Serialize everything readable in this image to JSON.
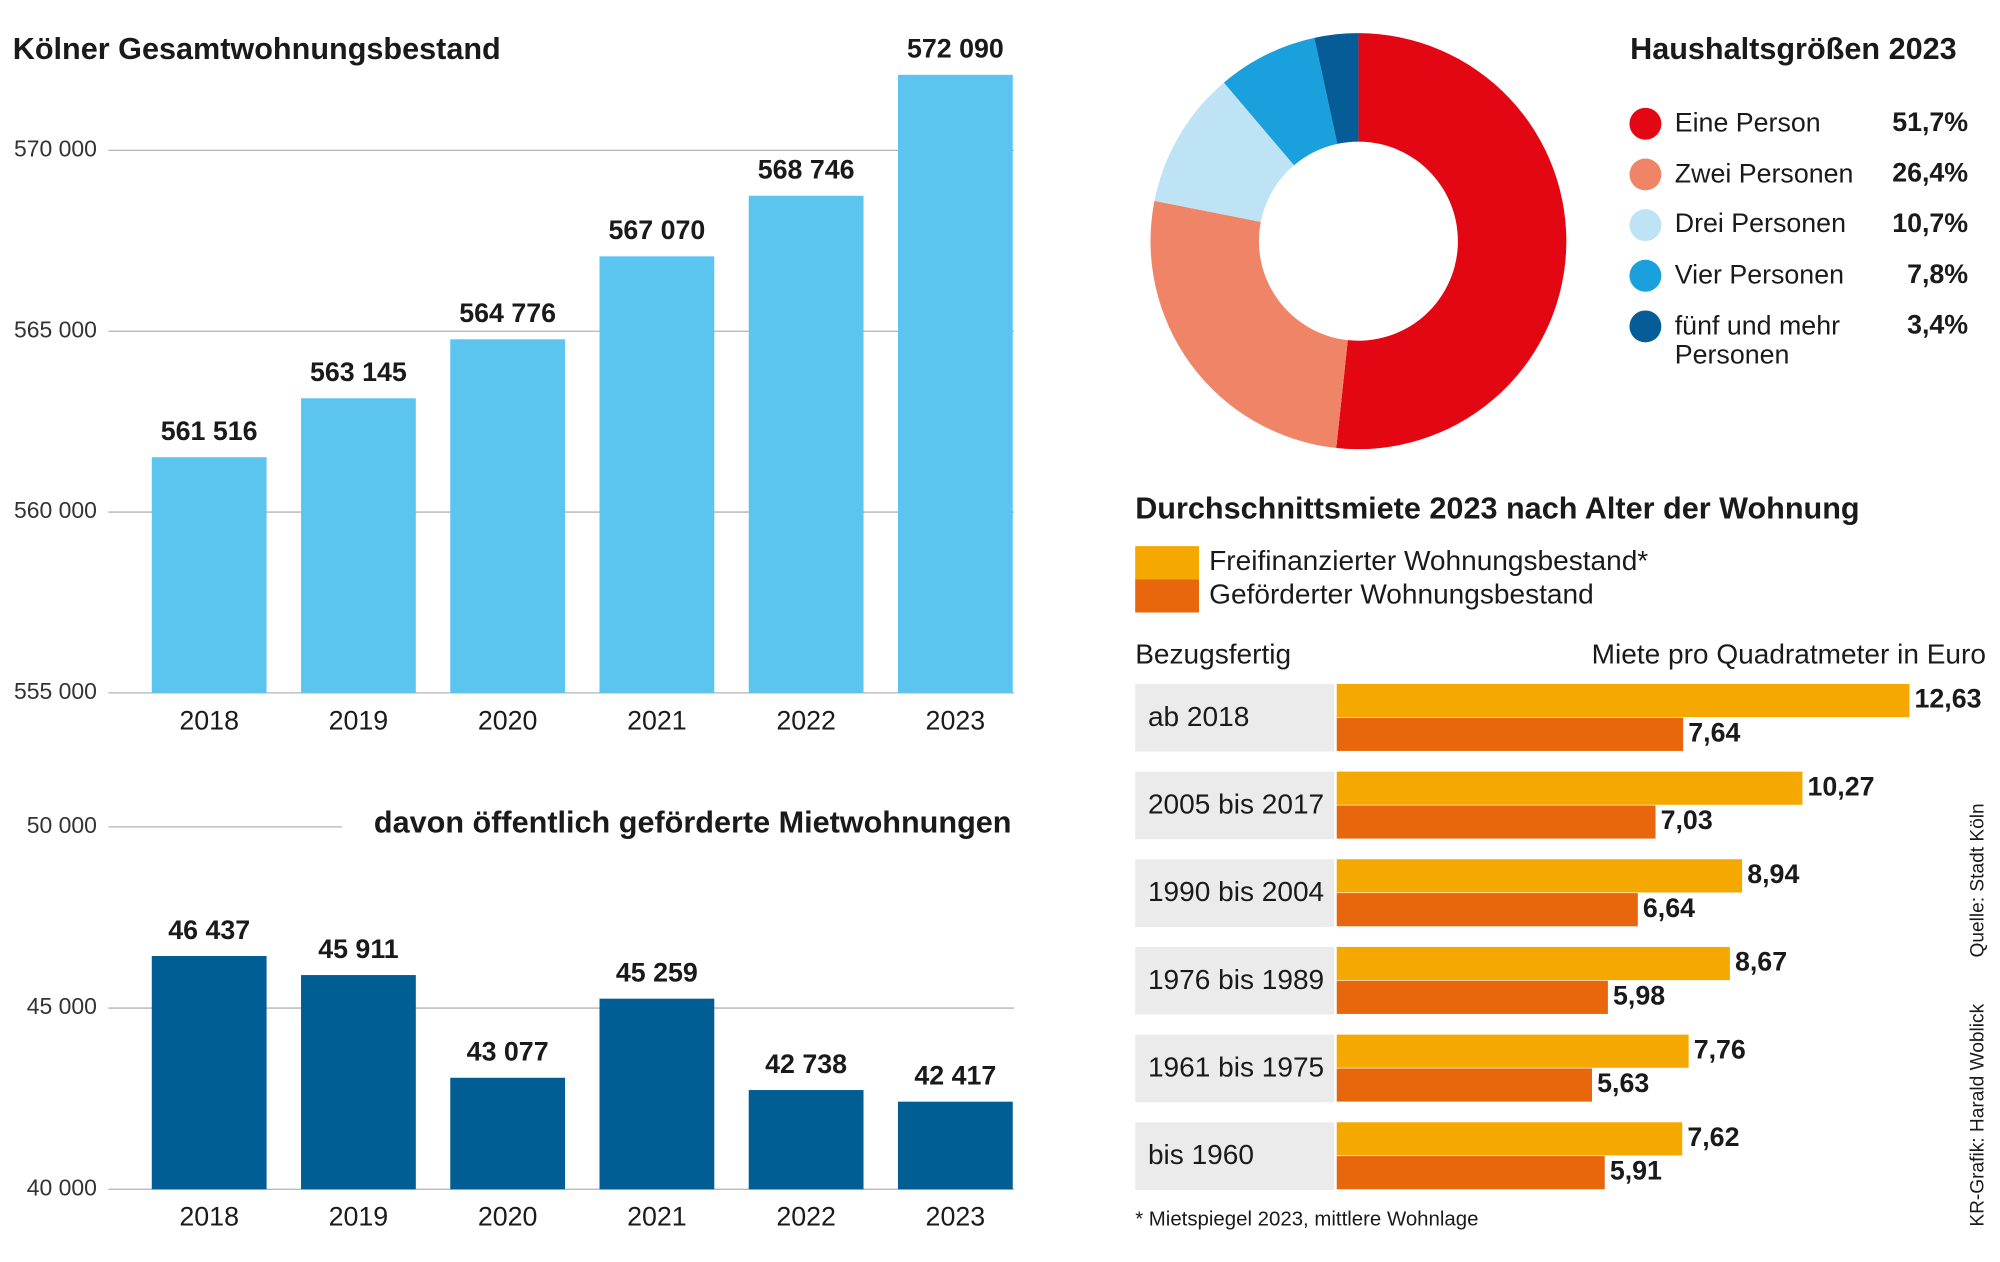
{
  "chart_data": [
    {
      "type": "bar",
      "title": "Kölner Gesamtwohnungsbestand",
      "categories": [
        "2018",
        "2019",
        "2020",
        "2021",
        "2022",
        "2023"
      ],
      "values": [
        561516,
        563145,
        564776,
        567070,
        568746,
        572090
      ],
      "value_labels": [
        "561 516",
        "563 145",
        "564 776",
        "567 070",
        "568 746",
        "572 090"
      ],
      "color": "#5bc5ef",
      "ylim": [
        555000,
        572500
      ],
      "yticks": [
        {
          "value": 555000,
          "label": "555 000"
        },
        {
          "value": 560000,
          "label": "560 000"
        },
        {
          "value": 565000,
          "label": "565 000"
        },
        {
          "value": 570000,
          "label": "570 000"
        }
      ],
      "grid": true
    },
    {
      "type": "bar",
      "title": "davon öffentlich geförderte Mietwohnungen",
      "categories": [
        "2018",
        "2019",
        "2020",
        "2021",
        "2022",
        "2023"
      ],
      "values": [
        46437,
        45911,
        43077,
        45259,
        42738,
        42417
      ],
      "value_labels": [
        "46 437",
        "45 911",
        "43 077",
        "45 259",
        "42 738",
        "42 417"
      ],
      "color": "#005e94",
      "ylim": [
        40000,
        50000
      ],
      "yticks": [
        {
          "value": 40000,
          "label": "40 000"
        },
        {
          "value": 45000,
          "label": "45 000"
        },
        {
          "value": 50000,
          "label": "50 000"
        }
      ],
      "grid": true
    },
    {
      "type": "donut",
      "title": "Haushaltsgrößen 2023",
      "categories": [
        "Eine Person",
        "Zwei Personen",
        "Drei Personen",
        "Vier Personen",
        "fünf und mehr Personen"
      ],
      "values": [
        51.7,
        26.4,
        10.7,
        7.8,
        3.4
      ],
      "value_labels": [
        "51,7%",
        "26,4%",
        "10,7%",
        "7,8%",
        "3,4%"
      ],
      "colors": [
        "#e30613",
        "#ef8466",
        "#bde3f5",
        "#1aa0dc",
        "#055c96"
      ]
    },
    {
      "type": "hbar",
      "title": "Durchschnittsmiete 2023 nach Alter der Wohnung",
      "y_label": "Bezugsfertig",
      "x_label": "Miete pro Quadratmeter in Euro",
      "categories": [
        "ab 2018",
        "2005 bis 2017",
        "1990 bis 2004",
        "1976 bis 1989",
        "1961 bis 1975",
        "bis 1960"
      ],
      "series": [
        {
          "name": "Freifinanzierter Wohnungsbestand*",
          "color": "#f5a800",
          "values": [
            12.63,
            10.27,
            8.94,
            8.67,
            7.76,
            7.62
          ],
          "value_labels": [
            "12,63",
            "10,27",
            "8,94",
            "8,67",
            "7,76",
            "7,62"
          ]
        },
        {
          "name": "Geförderter Wohnungsbestand",
          "color": "#e8670c",
          "values": [
            7.64,
            7.03,
            6.64,
            5.98,
            5.63,
            5.91
          ],
          "value_labels": [
            "7,64",
            "7,03",
            "6,64",
            "5,98",
            "5,63",
            "5,91"
          ]
        }
      ],
      "footnote": "* Mietspiegel 2023, mittlere Wohnlage",
      "source": "Quelle: Stadt Köln",
      "credit": "KR-Grafik: Harald Woblick"
    }
  ]
}
